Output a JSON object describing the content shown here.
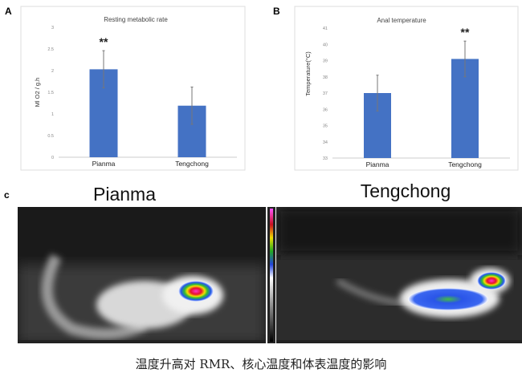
{
  "chart_data": [
    {
      "panel_label": "A",
      "type": "bar",
      "title": "Resting metabolic rate",
      "ylabel": "Ml O2 / g.h",
      "xlabel": "",
      "categories": [
        "Pianma",
        "Tengchong"
      ],
      "values": [
        2.03,
        1.19
      ],
      "error": [
        0.43,
        0.43
      ],
      "significance": [
        "**",
        ""
      ],
      "ylim": [
        0,
        3
      ],
      "yticks": [
        "0",
        "0.5",
        "1",
        "1.5",
        "2",
        "2.5",
        "3"
      ],
      "bar_color": "#4472C4",
      "grid": false
    },
    {
      "panel_label": "B",
      "type": "bar",
      "title": "Anal temperature",
      "ylabel": "Temperature(°C)",
      "xlabel": "",
      "categories": [
        "Pianma",
        "Tengchong"
      ],
      "values": [
        37.0,
        39.1
      ],
      "error": [
        1.1,
        1.1
      ],
      "significance": [
        "",
        "**"
      ],
      "ylim": [
        33,
        41
      ],
      "yticks": [
        "33",
        "34",
        "35",
        "36",
        "37",
        "38",
        "39",
        "40",
        "41"
      ],
      "bar_color": "#4472C4",
      "grid": false
    }
  ],
  "panel_c": {
    "label": "c",
    "left_title": "Pianma",
    "right_title": "Tengchong"
  },
  "caption": "温度升高对 RMR、核心温度和体表温度的影响"
}
